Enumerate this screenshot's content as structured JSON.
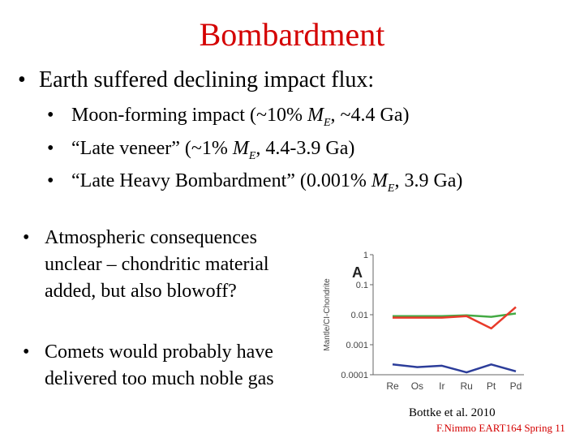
{
  "slide": {
    "title": "Bombardment",
    "bullet1": "Earth suffered declining impact flux:",
    "sub_bullets": [
      {
        "pre": "Moon-forming impact (~10% ",
        "sym": "M",
        "subs": "E",
        "post": ", ~4.4 Ga)"
      },
      {
        "pre": "“Late veneer” (~1% ",
        "sym": "M",
        "subs": "E",
        "post": ", 4.4-3.9 Ga)"
      },
      {
        "pre": "“Late Heavy Bombardment” (0.001% ",
        "sym": "M",
        "subs": "E",
        "post": ", 3.9 Ga)"
      }
    ],
    "bullet2": "Atmospheric consequences unclear – chondritic material added, but also blowoff?",
    "bullet3": "Comets would probably have delivered too much noble gas",
    "figure_credit": "Bottke et al. 2010",
    "footer": "F.Nimmo EART164 Spring 11",
    "bullet_glyph": "•"
  },
  "chart_data": {
    "type": "line",
    "panel_label": "A",
    "ylabel": "Mantle/CI-Chondrite",
    "yscale": "log",
    "ylim": [
      0.0001,
      1
    ],
    "yticks": [
      "1",
      "0.1",
      "0.01",
      "0.001",
      "0.0001"
    ],
    "categories": [
      "Re",
      "Os",
      "Ir",
      "Ru",
      "Pt",
      "Pd"
    ],
    "series": [
      {
        "color": "#44aa44",
        "values": [
          0.009,
          0.009,
          0.009,
          0.0095,
          0.0085,
          0.011
        ]
      },
      {
        "color": "#e83a2a",
        "values": [
          0.008,
          0.008,
          0.008,
          0.009,
          0.0035,
          0.018
        ]
      },
      {
        "color": "#2c3d9a",
        "values": [
          0.00022,
          0.00018,
          0.0002,
          0.00012,
          0.00022,
          0.00013
        ]
      }
    ]
  }
}
